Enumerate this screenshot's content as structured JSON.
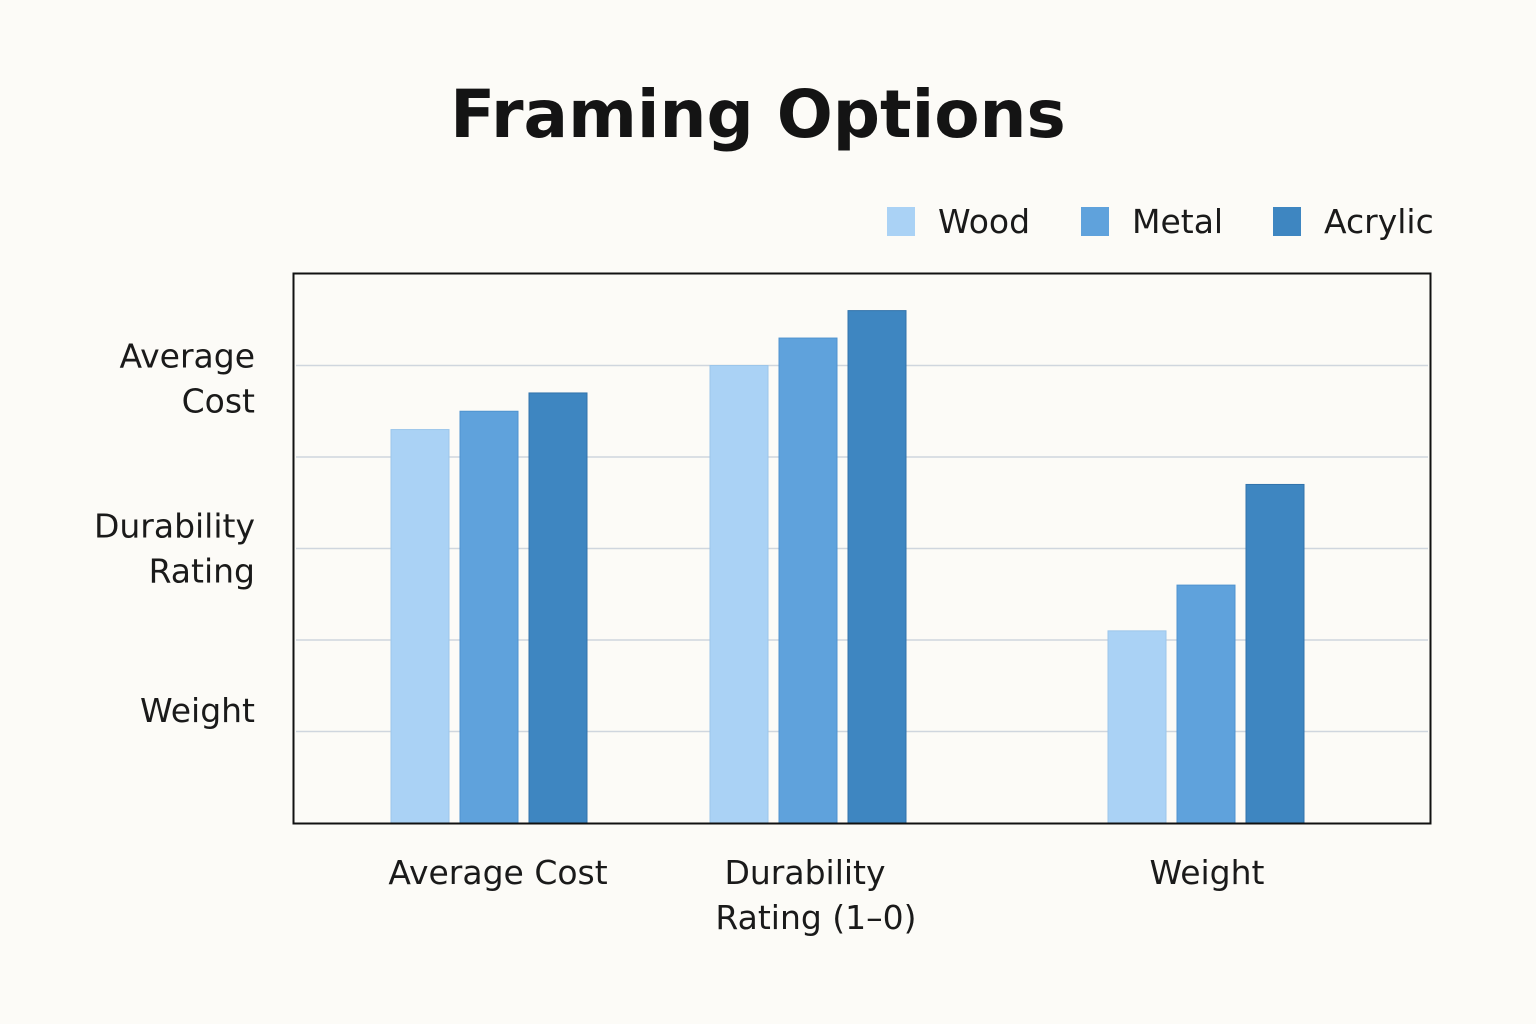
{
  "chart_data": {
    "type": "bar",
    "title": "Framing Options",
    "categories": [
      "Average Cost",
      "Durability\nRating (1–0)",
      "Weight"
    ],
    "series": [
      {
        "name": "Wood",
        "color": "#aad2f5",
        "values": [
          4.3,
          5.0,
          2.1
        ]
      },
      {
        "name": "Metal",
        "color": "#5fa2dc",
        "values": [
          4.5,
          5.3,
          2.6
        ]
      },
      {
        "name": "Acrylic",
        "color": "#3e86c1",
        "values": [
          4.7,
          5.6,
          3.7
        ]
      }
    ],
    "y_tick_labels": [
      "Weight",
      "Durability\nRating",
      "Average\nCost"
    ],
    "ylim": [
      0,
      6
    ],
    "grid": true,
    "legend_position": "top-right"
  }
}
